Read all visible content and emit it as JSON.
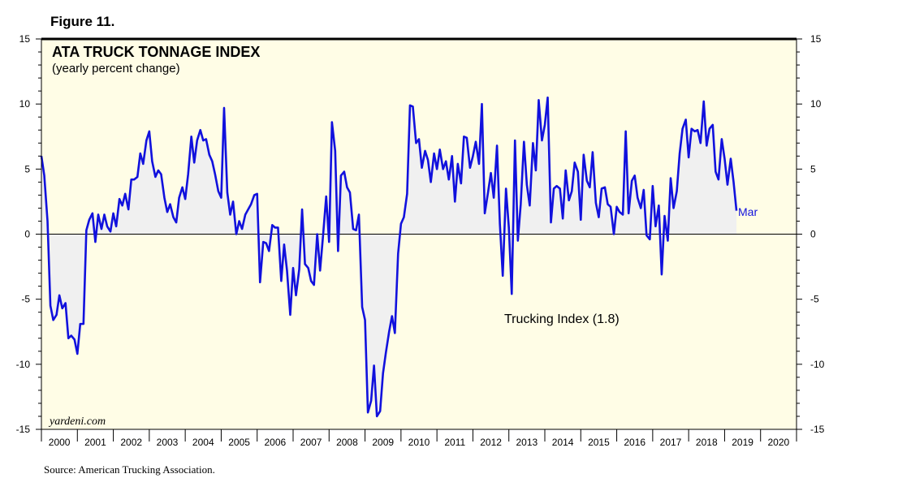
{
  "figure_label": "Figure 11.",
  "source": "Source: American Trucking Association.",
  "colors": {
    "plot_bg": "#fffde6",
    "line": "#1111dd",
    "fill": "#f0f0f0",
    "axis": "#000000"
  },
  "chart_data": {
    "type": "line",
    "title": "ATA TRUCK TONNAGE INDEX",
    "subtitle": "(yearly percent change)",
    "watermark": "yardeni.com",
    "series_label": "Trucking Index (1.8)",
    "end_label": "Mar",
    "ylim": [
      -15,
      15
    ],
    "y_ticks": [
      15,
      10,
      5,
      0,
      -5,
      -10,
      -15
    ],
    "x_range": [
      2000.0,
      2021.0
    ],
    "x_tick_labels": [
      "2000",
      "2001",
      "2002",
      "2003",
      "2004",
      "2005",
      "2006",
      "2007",
      "2008",
      "2009",
      "2010",
      "2011",
      "2012",
      "2013",
      "2014",
      "2015",
      "2016",
      "2017",
      "2018",
      "2019",
      "2020"
    ],
    "series": [
      {
        "name": "Trucking Index",
        "points": [
          [
            2000.0,
            6.0
          ],
          [
            2000.08,
            4.5
          ],
          [
            2000.17,
            1.0
          ],
          [
            2000.25,
            -5.5
          ],
          [
            2000.33,
            -6.6
          ],
          [
            2000.42,
            -6.2
          ],
          [
            2000.5,
            -4.7
          ],
          [
            2000.58,
            -5.7
          ],
          [
            2000.67,
            -5.3
          ],
          [
            2000.75,
            -8.0
          ],
          [
            2000.83,
            -7.8
          ],
          [
            2000.92,
            -8.1
          ],
          [
            2001.0,
            -9.2
          ],
          [
            2001.08,
            -6.9
          ],
          [
            2001.17,
            -6.9
          ],
          [
            2001.25,
            0.3
          ],
          [
            2001.33,
            1.1
          ],
          [
            2001.42,
            1.6
          ],
          [
            2001.5,
            -0.6
          ],
          [
            2001.58,
            1.5
          ],
          [
            2001.67,
            0.4
          ],
          [
            2001.75,
            1.5
          ],
          [
            2001.83,
            0.6
          ],
          [
            2001.92,
            0.2
          ],
          [
            2002.0,
            1.6
          ],
          [
            2002.08,
            0.6
          ],
          [
            2002.17,
            2.7
          ],
          [
            2002.25,
            2.2
          ],
          [
            2002.33,
            3.1
          ],
          [
            2002.42,
            1.9
          ],
          [
            2002.5,
            4.2
          ],
          [
            2002.58,
            4.2
          ],
          [
            2002.67,
            4.4
          ],
          [
            2002.75,
            6.2
          ],
          [
            2002.83,
            5.4
          ],
          [
            2002.92,
            7.2
          ],
          [
            2003.0,
            7.9
          ],
          [
            2003.08,
            5.6
          ],
          [
            2003.17,
            4.4
          ],
          [
            2003.25,
            4.9
          ],
          [
            2003.33,
            4.6
          ],
          [
            2003.42,
            2.8
          ],
          [
            2003.5,
            1.7
          ],
          [
            2003.58,
            2.3
          ],
          [
            2003.67,
            1.3
          ],
          [
            2003.75,
            0.9
          ],
          [
            2003.83,
            2.8
          ],
          [
            2003.92,
            3.6
          ],
          [
            2004.0,
            2.7
          ],
          [
            2004.08,
            4.6
          ],
          [
            2004.17,
            7.5
          ],
          [
            2004.25,
            5.5
          ],
          [
            2004.33,
            7.2
          ],
          [
            2004.42,
            8.0
          ],
          [
            2004.5,
            7.2
          ],
          [
            2004.58,
            7.3
          ],
          [
            2004.67,
            6.1
          ],
          [
            2004.75,
            5.6
          ],
          [
            2004.83,
            4.6
          ],
          [
            2004.92,
            3.3
          ],
          [
            2005.0,
            2.8
          ],
          [
            2005.08,
            9.7
          ],
          [
            2005.17,
            3.2
          ],
          [
            2005.25,
            1.5
          ],
          [
            2005.33,
            2.5
          ],
          [
            2005.42,
            0.0
          ],
          [
            2005.5,
            1.0
          ],
          [
            2005.58,
            0.4
          ],
          [
            2005.67,
            1.5
          ],
          [
            2005.75,
            1.9
          ],
          [
            2005.83,
            2.3
          ],
          [
            2005.92,
            3.0
          ],
          [
            2006.0,
            3.1
          ],
          [
            2006.08,
            -3.7
          ],
          [
            2006.17,
            -0.6
          ],
          [
            2006.25,
            -0.7
          ],
          [
            2006.33,
            -1.3
          ],
          [
            2006.42,
            0.7
          ],
          [
            2006.5,
            0.5
          ],
          [
            2006.58,
            0.5
          ],
          [
            2006.67,
            -3.6
          ],
          [
            2006.75,
            -0.8
          ],
          [
            2006.83,
            -2.8
          ],
          [
            2006.92,
            -6.2
          ],
          [
            2007.0,
            -2.6
          ],
          [
            2007.08,
            -4.7
          ],
          [
            2007.17,
            -2.7
          ],
          [
            2007.25,
            1.9
          ],
          [
            2007.33,
            -2.3
          ],
          [
            2007.42,
            -2.6
          ],
          [
            2007.5,
            -3.6
          ],
          [
            2007.58,
            -3.9
          ],
          [
            2007.67,
            0.0
          ],
          [
            2007.75,
            -2.8
          ],
          [
            2007.83,
            -0.2
          ],
          [
            2007.92,
            2.9
          ],
          [
            2008.0,
            -0.6
          ],
          [
            2008.08,
            8.6
          ],
          [
            2008.17,
            6.4
          ],
          [
            2008.25,
            -1.3
          ],
          [
            2008.33,
            4.5
          ],
          [
            2008.42,
            4.8
          ],
          [
            2008.5,
            3.6
          ],
          [
            2008.58,
            3.2
          ],
          [
            2008.67,
            0.4
          ],
          [
            2008.75,
            0.3
          ],
          [
            2008.83,
            1.5
          ],
          [
            2008.92,
            -5.6
          ],
          [
            2009.0,
            -6.6
          ],
          [
            2009.08,
            -13.7
          ],
          [
            2009.17,
            -12.8
          ],
          [
            2009.25,
            -10.1
          ],
          [
            2009.33,
            -14.0
          ],
          [
            2009.42,
            -13.6
          ],
          [
            2009.5,
            -10.7
          ],
          [
            2009.58,
            -9.1
          ],
          [
            2009.67,
            -7.5
          ],
          [
            2009.75,
            -6.3
          ],
          [
            2009.83,
            -7.6
          ],
          [
            2009.92,
            -1.5
          ],
          [
            2010.0,
            0.8
          ],
          [
            2010.08,
            1.3
          ],
          [
            2010.17,
            3.1
          ],
          [
            2010.25,
            9.9
          ],
          [
            2010.33,
            9.8
          ],
          [
            2010.42,
            7.0
          ],
          [
            2010.5,
            7.3
          ],
          [
            2010.58,
            5.1
          ],
          [
            2010.67,
            6.4
          ],
          [
            2010.75,
            5.7
          ],
          [
            2010.83,
            4.0
          ],
          [
            2010.92,
            6.2
          ],
          [
            2011.0,
            5.0
          ],
          [
            2011.08,
            6.5
          ],
          [
            2011.17,
            5.0
          ],
          [
            2011.25,
            5.6
          ],
          [
            2011.33,
            4.2
          ],
          [
            2011.42,
            6.0
          ],
          [
            2011.5,
            2.5
          ],
          [
            2011.58,
            5.4
          ],
          [
            2011.67,
            3.9
          ],
          [
            2011.75,
            7.5
          ],
          [
            2011.83,
            7.4
          ],
          [
            2011.92,
            5.1
          ],
          [
            2012.0,
            6.0
          ],
          [
            2012.08,
            7.1
          ],
          [
            2012.17,
            5.4
          ],
          [
            2012.25,
            10.0
          ],
          [
            2012.33,
            1.6
          ],
          [
            2012.42,
            3.2
          ],
          [
            2012.5,
            4.7
          ],
          [
            2012.58,
            2.8
          ],
          [
            2012.67,
            6.8
          ],
          [
            2012.75,
            0.8
          ],
          [
            2012.83,
            -3.2
          ],
          [
            2012.92,
            3.5
          ],
          [
            2013.0,
            0.5
          ],
          [
            2013.08,
            -4.6
          ],
          [
            2013.17,
            7.2
          ],
          [
            2013.25,
            -0.5
          ],
          [
            2013.33,
            2.3
          ],
          [
            2013.42,
            7.1
          ],
          [
            2013.5,
            3.8
          ],
          [
            2013.58,
            2.2
          ],
          [
            2013.67,
            7.0
          ],
          [
            2013.75,
            4.9
          ],
          [
            2013.83,
            10.3
          ],
          [
            2013.92,
            7.2
          ],
          [
            2014.0,
            8.4
          ],
          [
            2014.08,
            10.5
          ],
          [
            2014.17,
            0.9
          ],
          [
            2014.25,
            3.5
          ],
          [
            2014.33,
            3.7
          ],
          [
            2014.42,
            3.5
          ],
          [
            2014.5,
            1.2
          ],
          [
            2014.58,
            4.9
          ],
          [
            2014.67,
            2.6
          ],
          [
            2014.75,
            3.3
          ],
          [
            2014.83,
            5.5
          ],
          [
            2014.92,
            4.8
          ],
          [
            2015.0,
            1.1
          ],
          [
            2015.08,
            6.1
          ],
          [
            2015.17,
            4.1
          ],
          [
            2015.25,
            3.6
          ],
          [
            2015.33,
            6.3
          ],
          [
            2015.42,
            2.4
          ],
          [
            2015.5,
            1.3
          ],
          [
            2015.58,
            3.5
          ],
          [
            2015.67,
            3.6
          ],
          [
            2015.75,
            2.3
          ],
          [
            2015.83,
            2.1
          ],
          [
            2015.92,
            0.0
          ],
          [
            2016.0,
            2.1
          ],
          [
            2016.08,
            1.7
          ],
          [
            2016.17,
            1.5
          ],
          [
            2016.25,
            7.9
          ],
          [
            2016.33,
            1.6
          ],
          [
            2016.42,
            4.1
          ],
          [
            2016.5,
            4.5
          ],
          [
            2016.58,
            2.8
          ],
          [
            2016.67,
            2.0
          ],
          [
            2016.75,
            3.4
          ],
          [
            2016.83,
            -0.1
          ],
          [
            2016.92,
            -0.4
          ],
          [
            2017.0,
            3.7
          ],
          [
            2017.08,
            0.6
          ],
          [
            2017.17,
            2.2
          ],
          [
            2017.25,
            -3.1
          ],
          [
            2017.33,
            1.4
          ],
          [
            2017.42,
            -0.5
          ],
          [
            2017.5,
            4.3
          ],
          [
            2017.58,
            2.0
          ],
          [
            2017.67,
            3.3
          ],
          [
            2017.75,
            6.2
          ],
          [
            2017.83,
            8.1
          ],
          [
            2017.92,
            8.8
          ],
          [
            2018.0,
            5.9
          ],
          [
            2018.08,
            8.1
          ],
          [
            2018.17,
            7.9
          ],
          [
            2018.25,
            8.0
          ],
          [
            2018.33,
            7.0
          ],
          [
            2018.42,
            10.2
          ],
          [
            2018.5,
            6.8
          ],
          [
            2018.58,
            8.1
          ],
          [
            2018.67,
            8.4
          ],
          [
            2018.75,
            4.8
          ],
          [
            2018.83,
            4.2
          ],
          [
            2018.92,
            7.3
          ],
          [
            2019.0,
            5.8
          ],
          [
            2019.08,
            3.8
          ],
          [
            2019.17,
            5.8
          ],
          [
            2019.25,
            4.0
          ],
          [
            2019.33,
            1.8
          ]
        ]
      }
    ]
  }
}
